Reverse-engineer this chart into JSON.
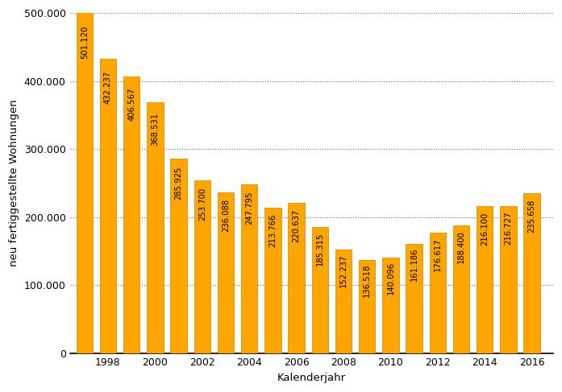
{
  "years": [
    1997,
    1998,
    1999,
    2000,
    2001,
    2002,
    2003,
    2004,
    2005,
    2006,
    2007,
    2008,
    2009,
    2010,
    2011,
    2012,
    2013,
    2014,
    2015,
    2016
  ],
  "values": [
    501120,
    432237,
    406567,
    368531,
    285925,
    253700,
    236088,
    247795,
    213766,
    220637,
    185315,
    152237,
    136518,
    140096,
    161186,
    176617,
    188400,
    216100,
    216727,
    235658
  ],
  "bar_color": "#FFA500",
  "bar_edgecolor": "#CC8400",
  "ylabel": "neu fertiggestellte Wohnungen",
  "xlabel": "Kalenderjahr",
  "ylim": [
    0,
    500000
  ],
  "yticks": [
    0,
    100000,
    200000,
    300000,
    400000,
    500000
  ],
  "ytick_labels": [
    "0",
    "100.000",
    "200.000",
    "300.000",
    "400.000",
    "500.000"
  ],
  "xtick_positions": [
    1998,
    2000,
    2002,
    2004,
    2006,
    2008,
    2010,
    2012,
    2014,
    2016
  ],
  "label_fontsize": 7.2,
  "axis_fontsize": 9.5,
  "tick_fontsize": 9,
  "background_color": "#ffffff",
  "grid_color": "#666666",
  "bar_width": 0.7,
  "xlim_left": 1996.4,
  "xlim_right": 2016.9
}
